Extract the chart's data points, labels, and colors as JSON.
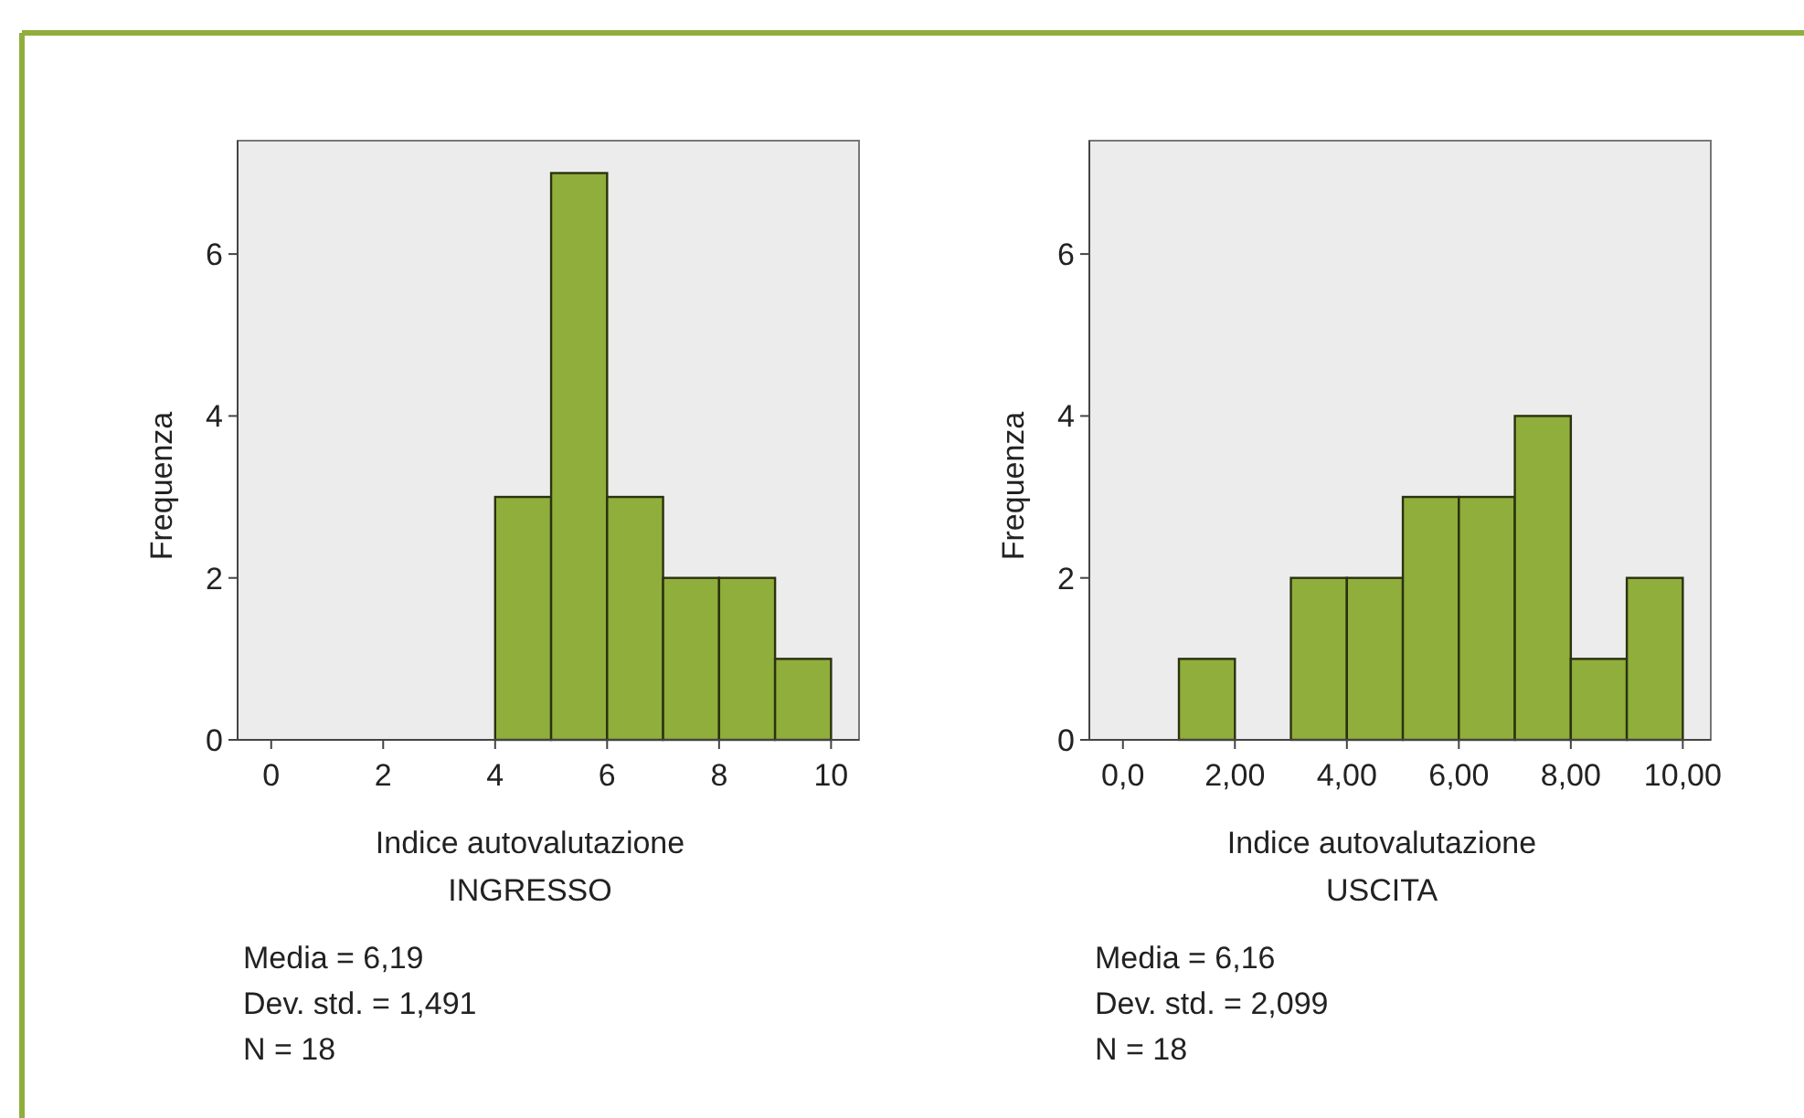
{
  "chart_data": [
    {
      "type": "histogram",
      "xlabel": "Indice autovalutazione\nINGRESSO",
      "ylabel": "Frequenza",
      "bins": [
        0,
        1,
        2,
        3,
        4,
        5,
        6,
        7,
        8,
        9,
        10
      ],
      "values": [
        0,
        0,
        0,
        0,
        3,
        7,
        3,
        2,
        2,
        1
      ],
      "color": "#8fae3c",
      "xlim": [
        -0.6,
        10.5
      ],
      "xticks": [
        0,
        2,
        4,
        6,
        8,
        10
      ],
      "ylim": [
        0,
        7.4
      ],
      "yticks": [
        0,
        2,
        4,
        6
      ],
      "grid": false,
      "annotations": [
        "Media = 6,19",
        "Dev. std. = 1,491",
        "N = 18"
      ]
    },
    {
      "type": "histogram",
      "xlabel": "Indice autovalutazione\nUSCITA",
      "ylabel": "Frequenza",
      "bins": [
        0,
        1,
        2,
        3,
        4,
        5,
        6,
        7,
        8,
        9,
        10
      ],
      "values": [
        0,
        1,
        0,
        2,
        2,
        3,
        3,
        4,
        1,
        2
      ],
      "color": "#8fae3c",
      "xlim": [
        -0.6,
        10.5
      ],
      "xticks": [
        {
          "value": 0,
          "label": "0,0"
        },
        {
          "value": 2,
          "label": "2,00"
        },
        {
          "value": 4,
          "label": "4,00"
        },
        {
          "value": 6,
          "label": "6,00"
        },
        {
          "value": 8,
          "label": "8,00"
        },
        {
          "value": 10,
          "label": "10,00"
        }
      ],
      "ylim": [
        0,
        7.4
      ],
      "yticks": [
        0,
        2,
        4,
        6
      ],
      "grid": false,
      "annotations": [
        "Media = 6,16",
        "Dev. std. = 2,099",
        "N = 18"
      ]
    }
  ]
}
